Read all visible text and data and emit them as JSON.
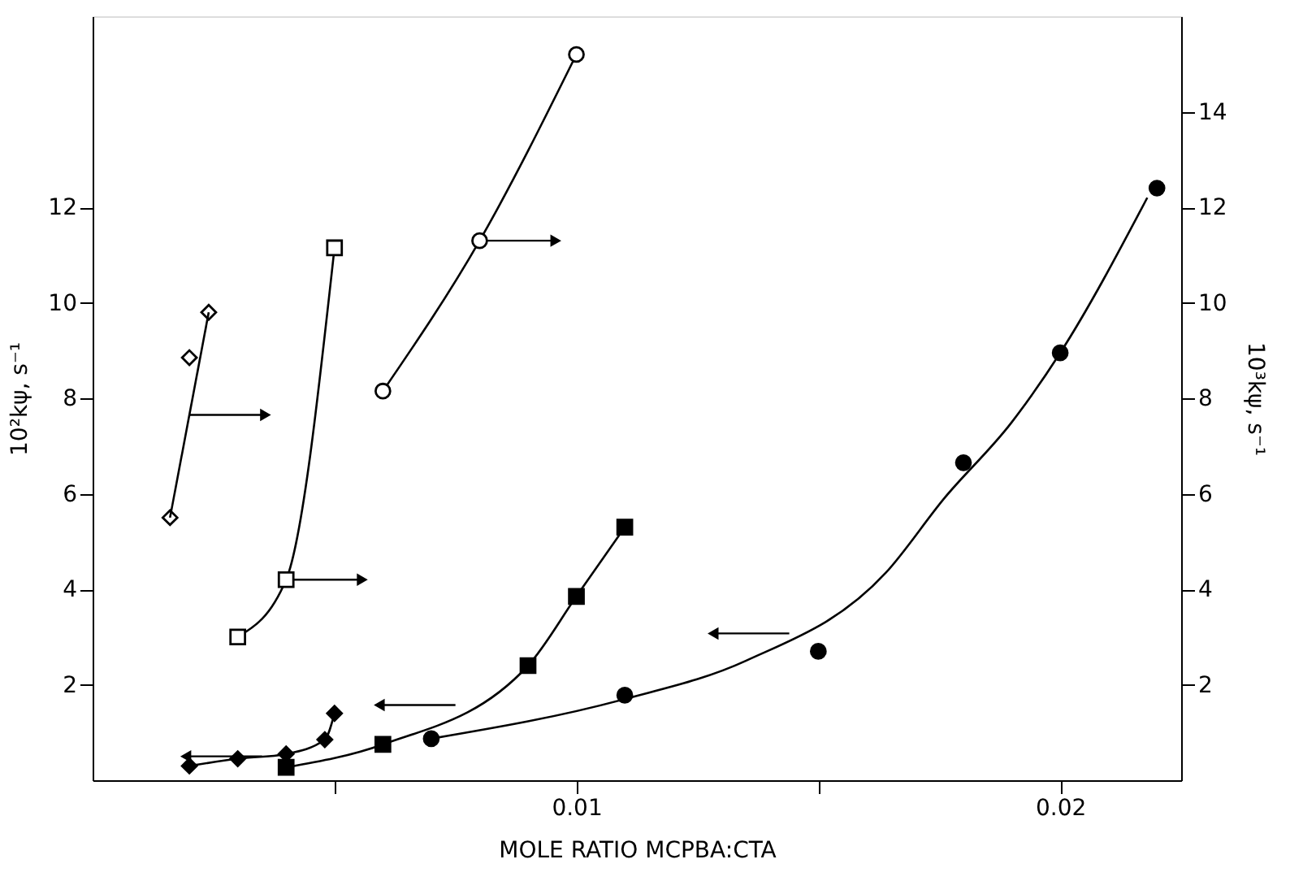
{
  "chart_data": {
    "type": "scatter",
    "xlabel": "MOLE RATIO  MCPBA:CTA",
    "ylabel": "10²kψ, s⁻¹",
    "y2label": "10³kψ, s⁻¹",
    "xlim": [
      0,
      0.0225
    ],
    "xticks": [
      {
        "value": 0.005,
        "label": null
      },
      0.01,
      {
        "value": 0.015,
        "label": null
      },
      0.02
    ],
    "ylim": [
      0,
      16
    ],
    "yticks": [
      2,
      4,
      6,
      8,
      10,
      12
    ],
    "y2lim": [
      0,
      16
    ],
    "y2ticks": [
      2,
      4,
      6,
      8,
      10,
      12,
      14
    ],
    "grid": false,
    "line_style": "solid",
    "series": [
      {
        "axis": "y2",
        "marker": "diamond",
        "color": "#000000",
        "x": [
          0.0016,
          0.002,
          0.0024
        ],
        "values": [
          5.5,
          8.85,
          9.8
        ]
      },
      {
        "type": "line",
        "axis": "y2",
        "marker": "none",
        "color": "#000000",
        "x": [
          0.0016,
          0.0024
        ],
        "values": [
          5.5,
          9.8
        ]
      },
      {
        "type": "line",
        "axis": "y2",
        "marker": "square",
        "color": "#000000",
        "x": [
          0.003,
          0.004,
          0.005
        ],
        "values": [
          3.0,
          4.2,
          11.15
        ]
      },
      {
        "type": "line",
        "axis": "y2",
        "marker": "circle",
        "color": "#000000",
        "x": [
          0.006,
          0.008,
          0.01
        ],
        "values": [
          8.15,
          11.3,
          15.2
        ]
      },
      {
        "type": "line",
        "axis": "y",
        "marker": "diamond",
        "color": "#000000",
        "x": [
          0.002,
          0.003,
          0.004,
          0.0048,
          0.005
        ],
        "values": [
          0.3,
          0.45,
          0.55,
          0.85,
          1.4
        ]
      },
      {
        "type": "line",
        "axis": "y",
        "marker": "square",
        "color": "#000000",
        "x": [
          0.004,
          0.006,
          0.009,
          0.01,
          0.011
        ],
        "values": [
          0.27,
          0.75,
          2.4,
          3.85,
          5.3
        ]
      },
      {
        "axis": "y",
        "marker": "circle",
        "color": "#000000",
        "x": [
          0.007,
          0.011,
          0.015,
          0.018,
          0.02,
          0.022
        ],
        "values": [
          0.87,
          1.78,
          2.7,
          6.65,
          8.95,
          12.4
        ]
      },
      {
        "type": "line",
        "axis": "y",
        "marker": "none",
        "color": "#000000",
        "x": [
          0.007,
          0.011,
          0.0135,
          0.0164,
          0.0176,
          0.019,
          0.02,
          0.0218
        ],
        "values": [
          0.87,
          1.7,
          2.5,
          4.35,
          5.9,
          7.5,
          8.95,
          12.2
        ]
      }
    ]
  }
}
